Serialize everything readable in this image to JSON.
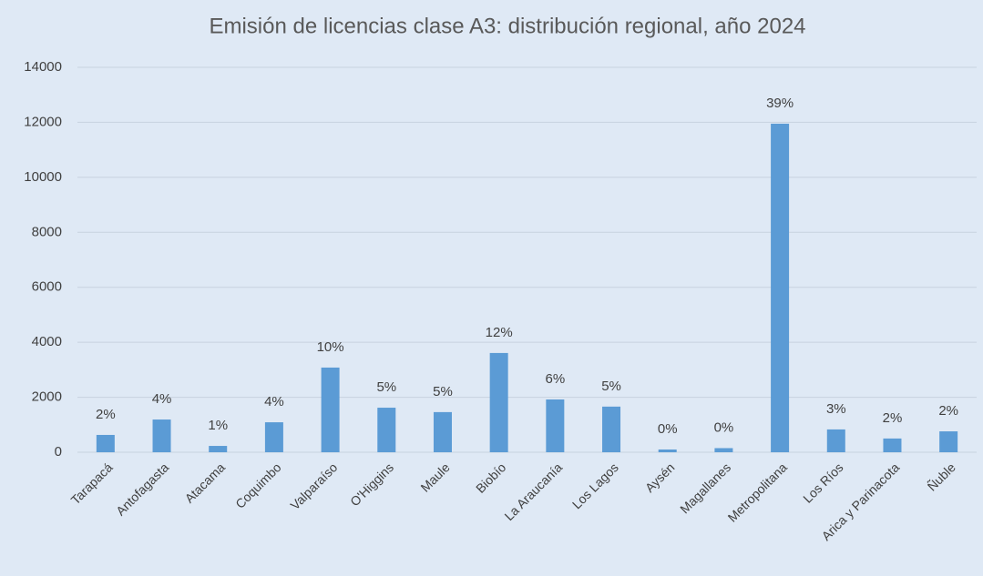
{
  "chart_data": {
    "type": "bar",
    "title": "Emisión de licencias clase A3: distribución regional, año 2024",
    "categories": [
      "Tarapacá",
      "Antofagasta",
      "Atacama",
      "Coquimbo",
      "Valparaíso",
      "O'Higgins",
      "Maule",
      "Biobío",
      "La Araucanía",
      "Los Lagos",
      "Aysén",
      "Magallanes",
      "Metropolitana",
      "Los Ríos",
      "Arica y Parinacota",
      "Ñuble"
    ],
    "values": [
      630,
      1190,
      230,
      1090,
      3080,
      1620,
      1460,
      3610,
      1920,
      1660,
      100,
      150,
      11950,
      830,
      500,
      760
    ],
    "share_labels": [
      "2%",
      "4%",
      "1%",
      "4%",
      "10%",
      "5%",
      "5%",
      "12%",
      "6%",
      "5%",
      "0%",
      "0%",
      "39%",
      "3%",
      "2%",
      "2%"
    ],
    "color": "#5b9bd5",
    "ylim": [
      0,
      14000
    ],
    "yticks": [
      0,
      2000,
      4000,
      6000,
      8000,
      10000,
      12000,
      14000
    ],
    "grid": true
  }
}
